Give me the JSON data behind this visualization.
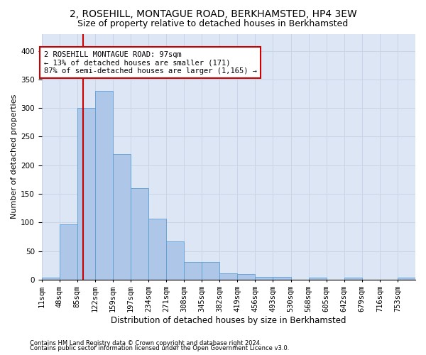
{
  "title1": "2, ROSEHILL, MONTAGUE ROAD, BERKHAMSTED, HP4 3EW",
  "title2": "Size of property relative to detached houses in Berkhamsted",
  "xlabel": "Distribution of detached houses by size in Berkhamsted",
  "ylabel": "Number of detached properties",
  "bin_labels": [
    "11sqm",
    "48sqm",
    "85sqm",
    "122sqm",
    "159sqm",
    "197sqm",
    "234sqm",
    "271sqm",
    "308sqm",
    "345sqm",
    "382sqm",
    "419sqm",
    "456sqm",
    "493sqm",
    "530sqm",
    "568sqm",
    "605sqm",
    "642sqm",
    "679sqm",
    "716sqm",
    "753sqm"
  ],
  "bar_heights": [
    4,
    97,
    300,
    330,
    220,
    160,
    106,
    67,
    31,
    31,
    11,
    10,
    5,
    5,
    0,
    3,
    0,
    3,
    0,
    0,
    3
  ],
  "bar_color": "#aec6e8",
  "bar_edgecolor": "#5a9fd4",
  "grid_color": "#c8d4e8",
  "bg_color": "#dce6f5",
  "vline_color": "#cc0000",
  "annotation_text": "2 ROSEHILL MONTAGUE ROAD: 97sqm\n← 13% of detached houses are smaller (171)\n87% of semi-detached houses are larger (1,165) →",
  "annotation_box_color": "#cc0000",
  "footer1": "Contains HM Land Registry data © Crown copyright and database right 2024.",
  "footer2": "Contains public sector information licensed under the Open Government Licence v3.0.",
  "ylim": [
    0,
    430
  ],
  "yticks": [
    0,
    50,
    100,
    150,
    200,
    250,
    300,
    350,
    400
  ],
  "title1_fontsize": 10,
  "title2_fontsize": 9,
  "xlabel_fontsize": 8.5,
  "ylabel_fontsize": 8,
  "tick_fontsize": 7.5,
  "footer_fontsize": 6.0,
  "ann_fontsize": 7.5
}
